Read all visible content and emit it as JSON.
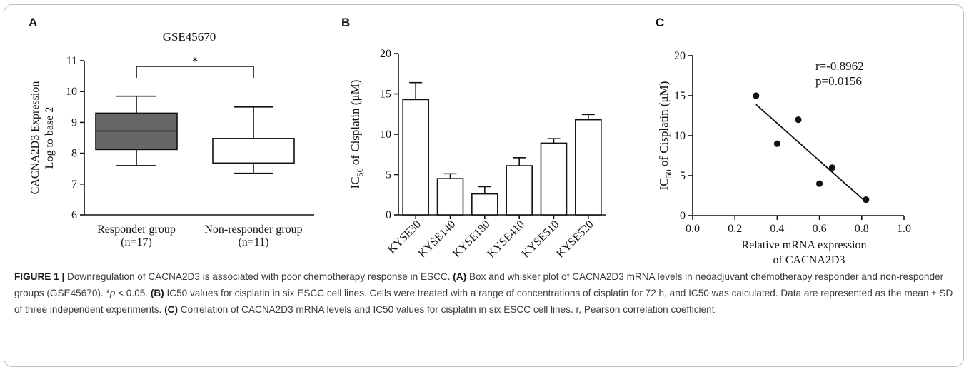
{
  "panels": {
    "a_letter": "A",
    "b_letter": "B",
    "c_letter": "C"
  },
  "chart_data": [
    {
      "panel": "A",
      "type": "box",
      "title": "GSE45670",
      "ylabel_line1": "CACNA2D3 Expression",
      "ylabel_line2": "Log to base 2",
      "ylim": [
        6,
        11
      ],
      "yticks": [
        "6",
        "7",
        "8",
        "9",
        "10",
        "11"
      ],
      "groups": [
        {
          "name": "Responder group",
          "n": "(n=17)",
          "min": 7.6,
          "q1": 8.12,
          "median": 8.72,
          "q3": 9.3,
          "max": 9.85,
          "fill": "#666666"
        },
        {
          "name": "Non-responder group",
          "n": "(n=11)",
          "min": 7.35,
          "q1": 7.68,
          "median": 7.68,
          "q3": 8.48,
          "max": 9.5,
          "fill": "#ffffff"
        }
      ],
      "significance": "*"
    },
    {
      "panel": "B",
      "type": "bar",
      "ylabel_main": "IC",
      "ylabel_sub": "50",
      "ylabel_rest": " of Cisplatin (μM)",
      "ylim": [
        0,
        20
      ],
      "yticks": [
        "0",
        "5",
        "10",
        "15",
        "20"
      ],
      "categories": [
        "KYSE30",
        "KYSE140",
        "KYSE180",
        "KYSE410",
        "KYSE510",
        "KYSE520"
      ],
      "values": [
        14.3,
        4.5,
        2.6,
        6.1,
        8.9,
        11.8
      ],
      "sd": [
        2.1,
        0.6,
        0.9,
        1.0,
        0.55,
        0.65
      ]
    },
    {
      "panel": "C",
      "type": "scatter",
      "ylabel_main": "IC",
      "ylabel_sub": "50",
      "ylabel_rest": " of Cisplatin (μM)",
      "xlabel_line1": "Relative mRNA expression",
      "xlabel_line2": "of CACNA2D3",
      "xlim": [
        0.0,
        1.0
      ],
      "ylim": [
        0,
        20
      ],
      "xticks": [
        "0.0",
        "0.2",
        "0.4",
        "0.6",
        "0.8",
        "1.0"
      ],
      "yticks": [
        "0",
        "5",
        "10",
        "15",
        "20"
      ],
      "x": [
        0.3,
        0.4,
        0.5,
        0.6,
        0.66,
        0.82
      ],
      "y": [
        15,
        9,
        12,
        4,
        6,
        2
      ],
      "fit": {
        "x": [
          0.3,
          0.82
        ],
        "y": [
          13.9,
          1.7
        ]
      },
      "annotation_r": "r=-0.8962",
      "annotation_p": "p=0.0156"
    }
  ],
  "caption": {
    "figure_label": "FIGURE 1 |",
    "text1": " Downregulation of CACNA2D3 is associated with poor chemotherapy response in ESCC. ",
    "a_label": "(A)",
    "text2": " Box and whisker plot of CACNA2D3 mRNA levels in neoadjuvant chemotherapy responder and non-responder groups (GSE45670). *",
    "p_italic": "p",
    "text3": " < 0.05. ",
    "b_label": "(B)",
    "text4": " IC50 values for cisplatin in six ESCC cell lines. Cells were treated with a range of concentrations of cisplatin for 72 h, and IC50 was calculated. Data are represented as the mean ± SD of three independent experiments. ",
    "c_label": "(C)",
    "text5": " Correlation of CACNA2D3 mRNA levels and IC50 values for cisplatin in six ESCC cell lines. r, Pearson correlation coefficient."
  }
}
